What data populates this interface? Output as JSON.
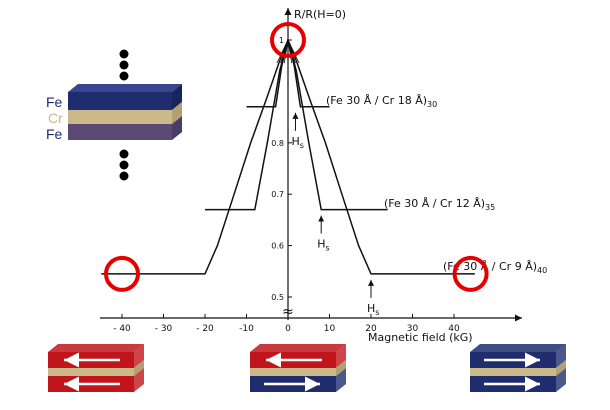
{
  "chart_data": {
    "type": "line",
    "ylabel": "R/R(H=0)",
    "xlabel": "Magnetic field (kG)",
    "xlim": [
      -45,
      52
    ],
    "ylim": [
      0.48,
      1.02
    ],
    "x_ticks": [
      -40,
      -30,
      -20,
      -10,
      0,
      10,
      20,
      30,
      40
    ],
    "x_tick_labels": [
      "- 40",
      "- 30",
      "- 20",
      "-10",
      "0",
      "10",
      "20",
      "30",
      "40"
    ],
    "y_ticks": [
      0.5,
      0.6,
      0.7,
      0.8,
      1.0
    ],
    "y_tick_labels": [
      "0.5",
      "0.6",
      "0.7",
      "0.8",
      "1"
    ],
    "axis_break_symbol": "≈",
    "series": [
      {
        "name": "(Fe 30 Å / Cr 18 Å)30",
        "label_text": "(Fe 30 Å / Cr 18 Å)",
        "label_sub": "30",
        "points": [
          [
            -10,
            0.87
          ],
          [
            -3,
            0.87
          ],
          [
            -1.5,
            0.95
          ],
          [
            0,
            1.0
          ],
          [
            1.5,
            0.95
          ],
          [
            3,
            0.87
          ],
          [
            10,
            0.87
          ]
        ]
      },
      {
        "name": "(Fe 30 Å / Cr 12 Å)35",
        "label_text": "(Fe 30 Å / Cr 12 Å)",
        "label_sub": "35",
        "points": [
          [
            -20,
            0.67
          ],
          [
            -8,
            0.67
          ],
          [
            -5,
            0.8
          ],
          [
            -2,
            0.94
          ],
          [
            0,
            1.0
          ],
          [
            2,
            0.94
          ],
          [
            5,
            0.8
          ],
          [
            8,
            0.67
          ],
          [
            24,
            0.67
          ]
        ]
      },
      {
        "name": "(Fe 30 Å / Cr 9 Å)40",
        "label_text": "(Fe 30 Å / Cr 9 Å)",
        "label_sub": "40",
        "points": [
          [
            -45,
            0.545
          ],
          [
            -20,
            0.545
          ],
          [
            -17,
            0.6
          ],
          [
            -13,
            0.7
          ],
          [
            -9,
            0.8
          ],
          [
            -5,
            0.89
          ],
          [
            -2,
            0.96
          ],
          [
            0,
            1.0
          ],
          [
            2,
            0.96
          ],
          [
            5,
            0.89
          ],
          [
            9,
            0.8
          ],
          [
            13,
            0.7
          ],
          [
            17,
            0.6
          ],
          [
            20,
            0.545
          ],
          [
            45,
            0.545
          ]
        ]
      }
    ],
    "annotations": [
      {
        "text": "H",
        "sub": "s",
        "x": 1.8,
        "y": 0.87
      },
      {
        "text": "H",
        "sub": "s",
        "x": 8,
        "y": 0.67
      },
      {
        "text": "H",
        "sub": "s",
        "x": 20,
        "y": 0.545
      }
    ],
    "highlight_circles": [
      {
        "x": 0,
        "y": 1.0
      },
      {
        "x": -40,
        "y": 0.545
      },
      {
        "x": 44,
        "y": 0.545
      }
    ]
  },
  "layers": {
    "labels": [
      "Fe",
      "Cr",
      "Fe"
    ],
    "colors": [
      "#1f2d6e",
      "#cbb98a",
      "#5a4a75"
    ]
  },
  "colors": {
    "highlight": "#e60000",
    "fe_red": "#c0161b",
    "fe_blue": "#1f2d6e",
    "cr_tan": "#cbb98a",
    "arrow": "#ffffff",
    "curve": "#111111"
  },
  "moment_diagrams": [
    {
      "name": "antiparallel-zero-field",
      "top_color": "red",
      "bottom_color": "red",
      "top_arrow": "left",
      "bottom_arrow": "left"
    },
    {
      "name": "antiparallel",
      "top_color": "red",
      "bottom_color": "blue",
      "top_arrow": "left",
      "bottom_arrow": "right"
    },
    {
      "name": "parallel-saturated",
      "top_color": "blue",
      "bottom_color": "blue",
      "top_arrow": "right",
      "bottom_arrow": "right"
    }
  ]
}
